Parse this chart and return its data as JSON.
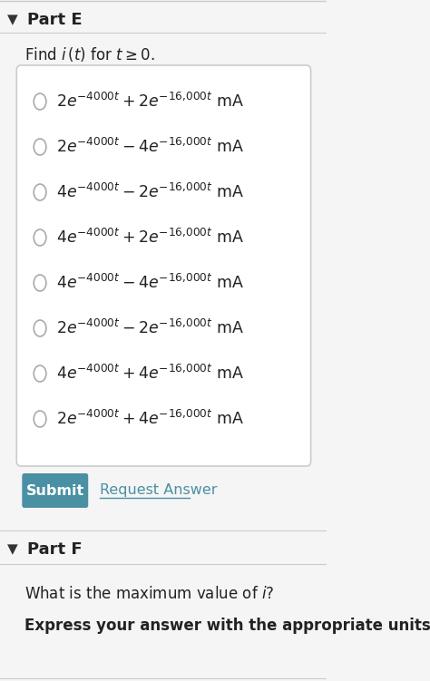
{
  "bg_color": "#f5f5f5",
  "white": "#ffffff",
  "part_e_label": "Part E",
  "part_f_label": "Part F",
  "find_text": "Find $i\\,(t)$ for $t \\geq 0$.",
  "options": [
    "$2e^{-4000t} + 2e^{-16{,}000t}$ mA",
    "$2e^{-4000t} - 4e^{-16{,}000t}$ mA",
    "$4e^{-4000t} - 2e^{-16{,}000t}$ mA",
    "$4e^{-4000t} + 2e^{-16{,}000t}$ mA",
    "$4e^{-4000t} - 4e^{-16{,}000t}$ mA",
    "$2e^{-4000t} - 2e^{-16{,}000t}$ mA",
    "$4e^{-4000t} + 4e^{-16{,}000t}$ mA",
    "$2e^{-4000t} + 4e^{-16{,}000t}$ mA"
  ],
  "submit_color": "#4a90a4",
  "submit_text_color": "#ffffff",
  "request_answer_color": "#4a90a4",
  "divider_color": "#cccccc",
  "arrow_color": "#333333",
  "part_f_question": "What is the maximum value of $i$?",
  "part_f_answer": "Express your answer with the appropriate units.",
  "radio_color": "#aaaaaa",
  "border_color": "#cccccc"
}
